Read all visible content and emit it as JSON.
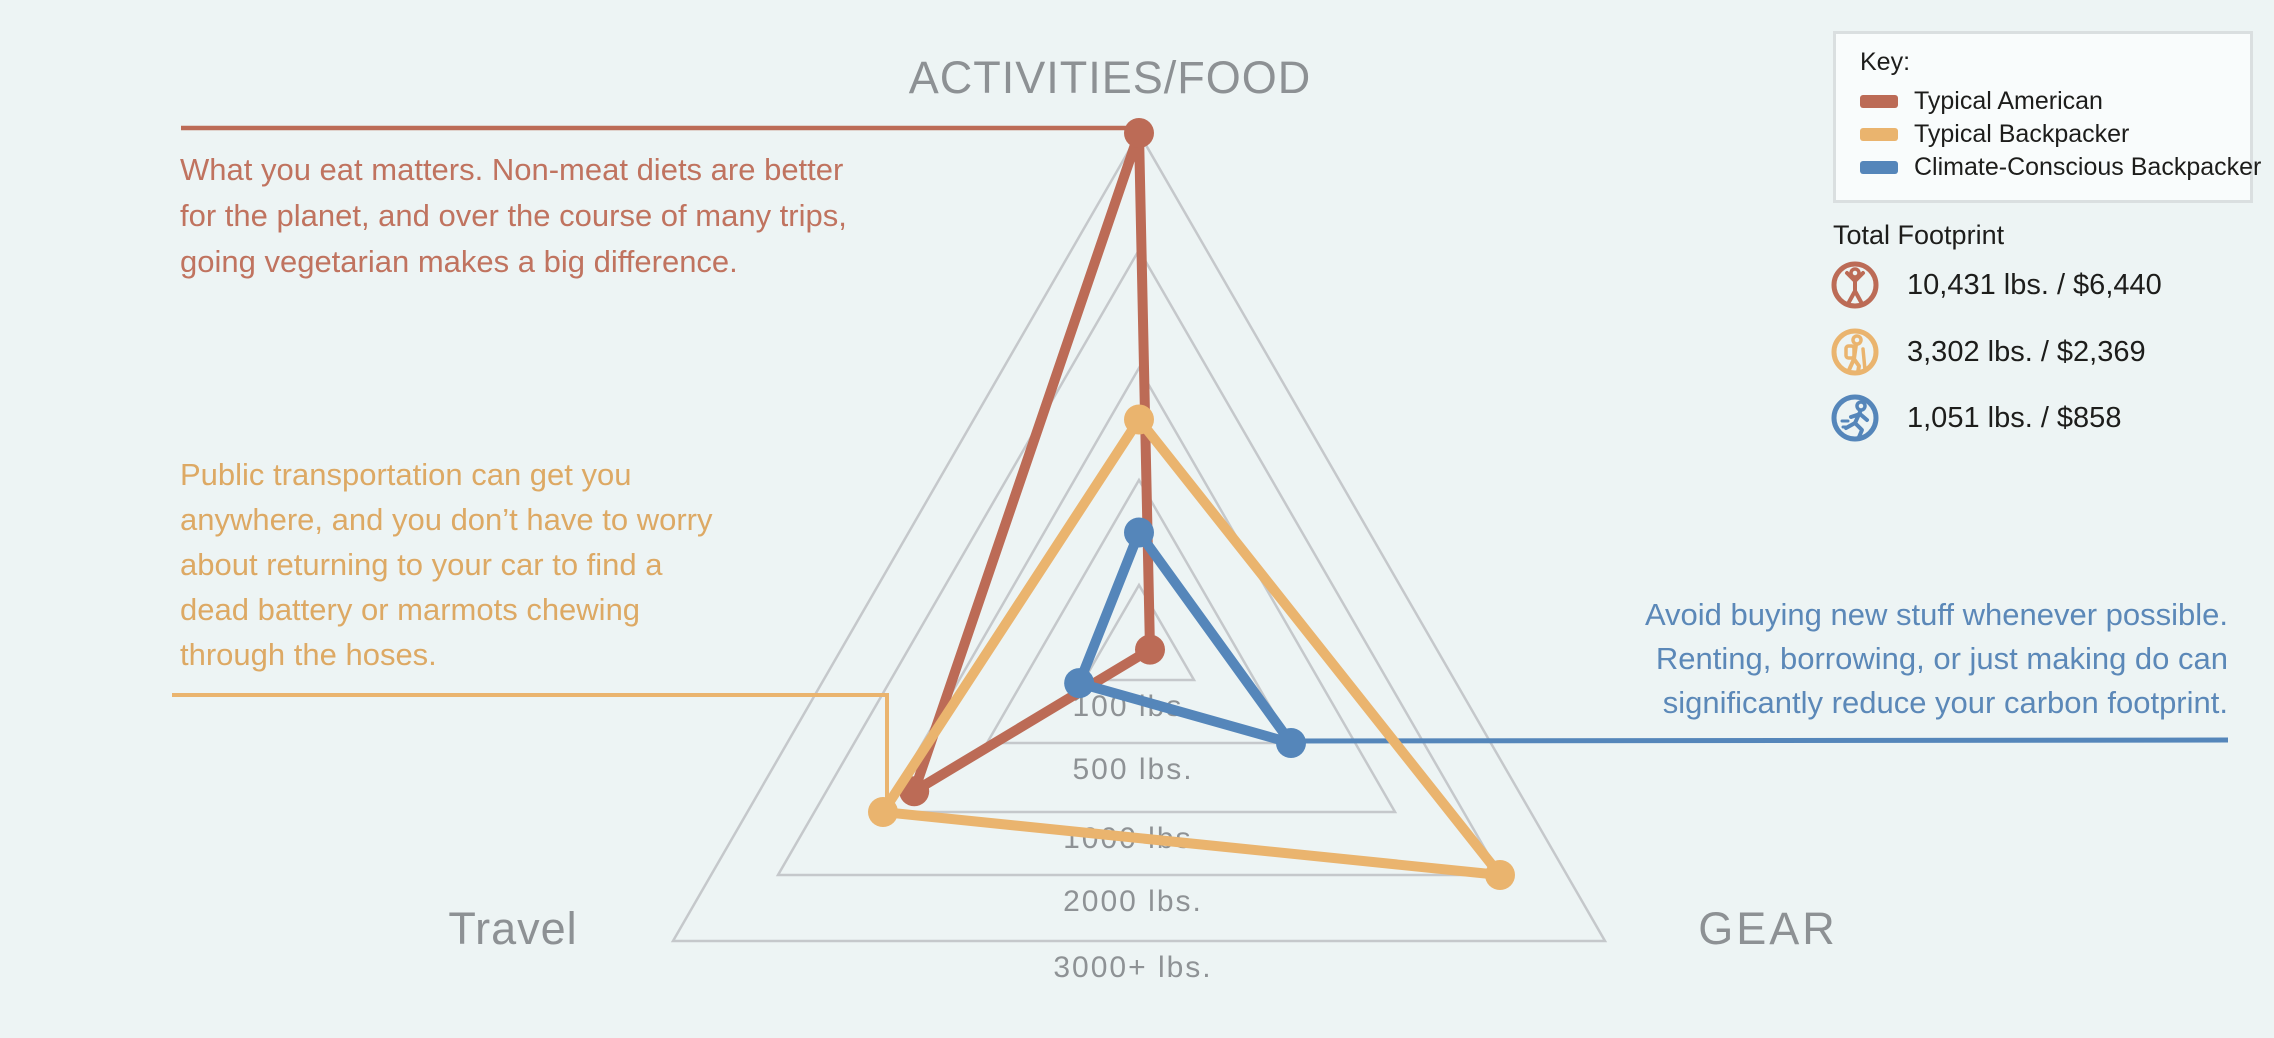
{
  "page": {
    "background": "#edf4f4",
    "grid_color": "#c5c8cb"
  },
  "chart_data": {
    "type": "radar",
    "shape": "triangle",
    "title": "",
    "unit": "lbs.",
    "axes": [
      "ACTIVITIES/FOOD",
      "Travel",
      "GEAR"
    ],
    "rings": [
      {
        "value": 100,
        "label": "100 lbs."
      },
      {
        "value": 500,
        "label": "500 lbs."
      },
      {
        "value": 1000,
        "label": "1000 lbs."
      },
      {
        "value": 2000,
        "label": "2000 lbs."
      },
      {
        "value": 3000,
        "label": "3000+ lbs."
      }
    ],
    "grid": true,
    "legend_position": "top-right",
    "series": [
      {
        "name": "Typical American",
        "color": "#bc6b56",
        "values": [
          3000,
          850,
          20
        ],
        "note": "ACTIVITIES/FOOD at 3000+ max ring"
      },
      {
        "name": "Typical Backpacker",
        "color": "#eab46e",
        "values": [
          770,
          1000,
          2000
        ]
      },
      {
        "name": "Climate-Conscious Backpacker",
        "color": "#5586ba",
        "values": [
          300,
          120,
          500
        ]
      }
    ]
  },
  "legend": {
    "title": "Key:",
    "items": [
      {
        "label": "Typical American",
        "color": "#bc6b56"
      },
      {
        "label": "Typical Backpacker",
        "color": "#eab46e"
      },
      {
        "label": "Climate-Conscious Backpacker",
        "color": "#5586ba"
      }
    ]
  },
  "totals": {
    "title": "Total Footprint",
    "rows": [
      {
        "icon": "person-arms-raised-icon",
        "color": "#bc6b56",
        "text": "10,431 lbs. / $6,440"
      },
      {
        "icon": "hiker-icon",
        "color": "#eab46e",
        "text": "3,302 lbs. / $2,369"
      },
      {
        "icon": "runner-icon",
        "color": "#5586ba",
        "text": "1,051 lbs. / $858"
      }
    ]
  },
  "annotations": {
    "food": {
      "color": "#c0735f",
      "text": "What you eat matters. Non-meat diets are better\nfor the planet, and over the course of many trips,\ngoing vegetarian makes a big difference."
    },
    "travel": {
      "color": "#dda964",
      "text": "Public transportation can get you\nanywhere, and you don’t have to worry\nabout returning to your car to find a\ndead battery or marmots chewing\nthrough the hoses."
    },
    "gear": {
      "color": "#5b88b8",
      "text": "Avoid buying new stuff whenever possible.\nRenting, borrowing, or just making do can\nsignificantly reduce your carbon footprint."
    }
  }
}
